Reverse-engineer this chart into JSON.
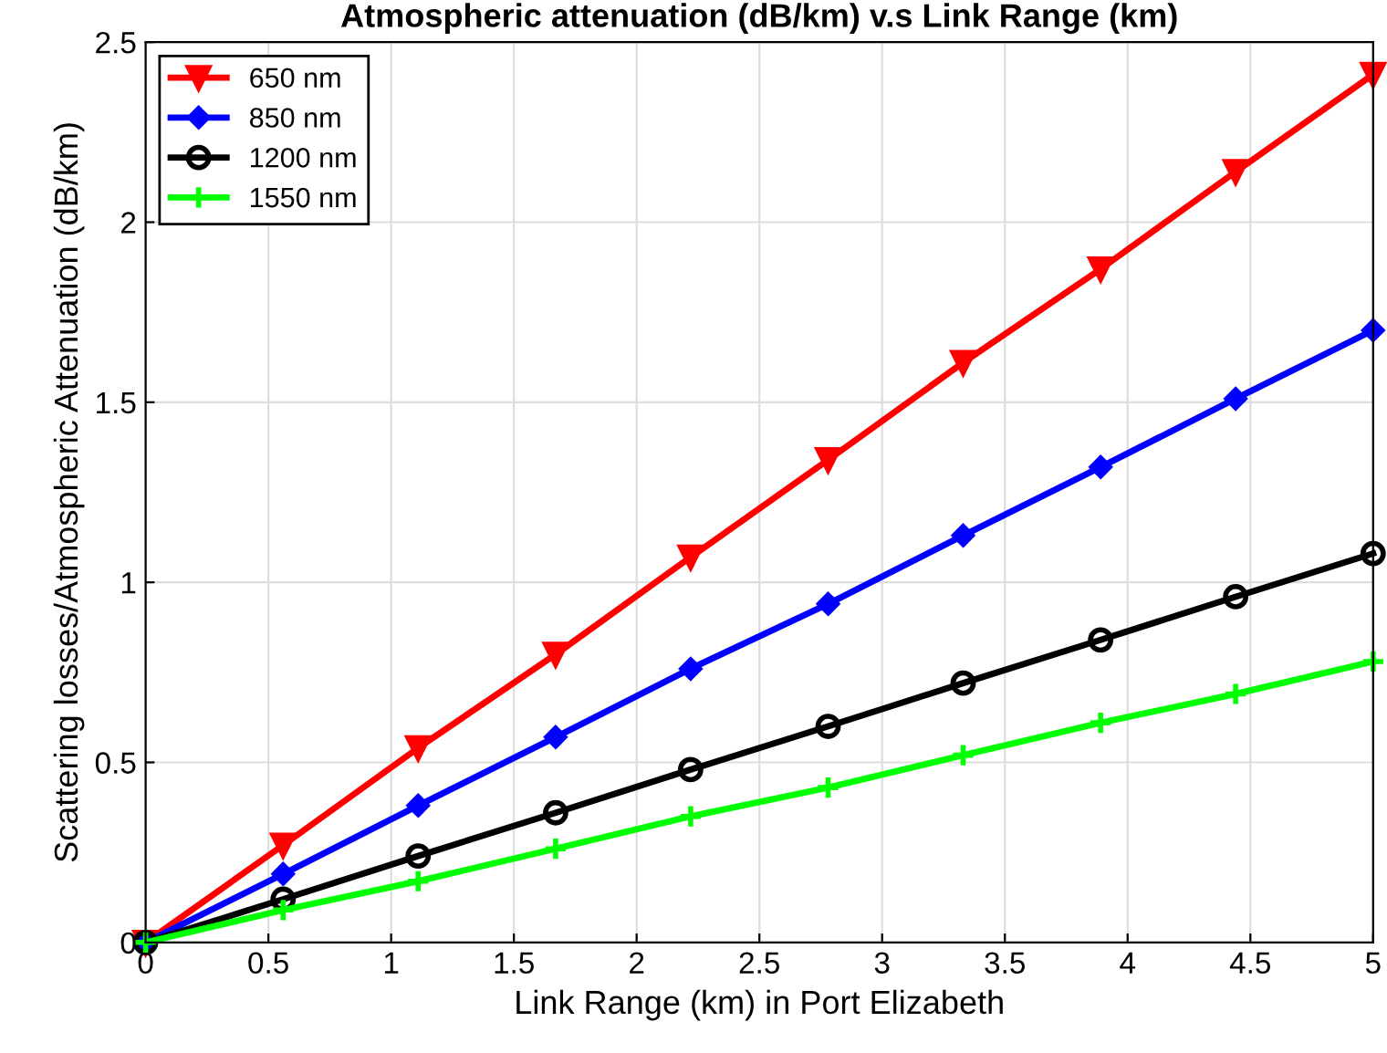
{
  "chart_data": {
    "type": "line",
    "title": "Atmospheric attenuation (dB/km) v.s Link Range (km)",
    "xlabel": "Link Range (km) in Port Elizabeth",
    "ylabel": "Scattering losses/Atmospheric Attenuation (dB/km)",
    "x": [
      0,
      0.56,
      1.11,
      1.67,
      2.22,
      2.78,
      3.33,
      3.89,
      4.44,
      5
    ],
    "series": [
      {
        "name": "650 nm",
        "color": "#ff0000",
        "marker": "triangle",
        "values": [
          0,
          0.27,
          0.54,
          0.8,
          1.07,
          1.34,
          1.61,
          1.87,
          2.14,
          2.41
        ]
      },
      {
        "name": "850 nm",
        "color": "#0000ff",
        "marker": "diamond",
        "values": [
          0,
          0.19,
          0.38,
          0.57,
          0.76,
          0.94,
          1.13,
          1.32,
          1.51,
          1.7
        ]
      },
      {
        "name": "1200 nm",
        "color": "#000000",
        "marker": "circle",
        "values": [
          0,
          0.12,
          0.24,
          0.36,
          0.48,
          0.6,
          0.72,
          0.84,
          0.96,
          1.08
        ]
      },
      {
        "name": "1550 nm",
        "color": "#00ff00",
        "marker": "cross",
        "values": [
          0,
          0.09,
          0.17,
          0.26,
          0.35,
          0.43,
          0.52,
          0.61,
          0.69,
          0.78
        ]
      }
    ],
    "xlim": [
      0,
      5
    ],
    "xticks": [
      0,
      0.5,
      1,
      1.5,
      2,
      2.5,
      3,
      3.5,
      4,
      4.5,
      5
    ],
    "ylim": [
      0,
      2.5
    ],
    "yticks": [
      0,
      0.5,
      1,
      1.5,
      2,
      2.5
    ],
    "grid": true,
    "legend": "top left",
    "line_style": "solid"
  }
}
